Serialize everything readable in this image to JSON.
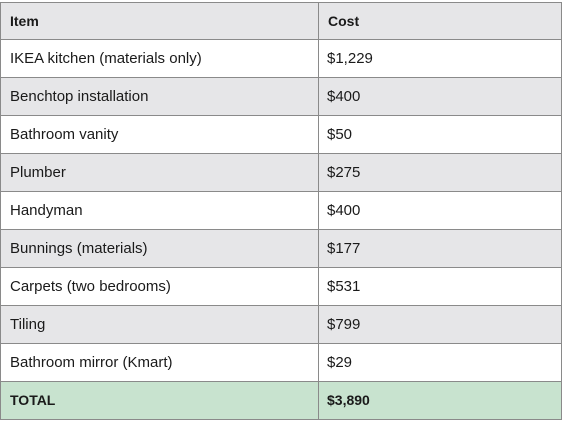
{
  "table": {
    "headers": {
      "item": "Item",
      "cost": "Cost"
    },
    "rows": [
      {
        "item": "IKEA kitchen (materials only)",
        "cost": "$1,229"
      },
      {
        "item": "Benchtop installation",
        "cost": "$400"
      },
      {
        "item": "Bathroom vanity",
        "cost": "$50"
      },
      {
        "item": "Plumber",
        "cost": "$275"
      },
      {
        "item": "Handyman",
        "cost": "$400"
      },
      {
        "item": "Bunnings (materials)",
        "cost": "$177"
      },
      {
        "item": "Carpets (two bedrooms)",
        "cost": "$531"
      },
      {
        "item": "Tiling",
        "cost": "$799"
      },
      {
        "item": "Bathroom mirror (Kmart)",
        "cost": "$29"
      }
    ],
    "total": {
      "label": "TOTAL",
      "value": "$3,890"
    }
  },
  "colors": {
    "header_bg": "#e6e6e8",
    "stripe_bg": "#e6e6e8",
    "total_bg": "#c8e3cf",
    "border": "#8a8a8a"
  }
}
